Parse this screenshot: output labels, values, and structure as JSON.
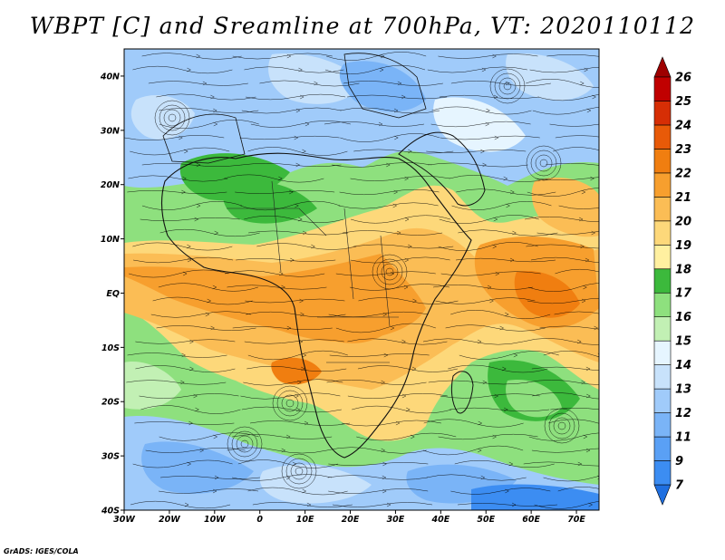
{
  "title": "WBPT [C] and Sreamline at 700hPa, VT: 2020110112",
  "credit": "GrADS: IGES/COLA",
  "map": {
    "lon_range": [
      -30,
      75
    ],
    "lat_range": [
      -40,
      45
    ],
    "lat_labels": [
      "40N",
      "30N",
      "20N",
      "10N",
      "EQ",
      "10S",
      "20S",
      "30S",
      "40S"
    ],
    "lat_values": [
      40,
      30,
      20,
      10,
      0,
      -10,
      -20,
      -30,
      -40
    ],
    "lon_labels": [
      "30W",
      "20W",
      "10W",
      "0",
      "10E",
      "20E",
      "30E",
      "40E",
      "50E",
      "60E",
      "70E"
    ],
    "lon_values": [
      -30,
      -20,
      -10,
      0,
      10,
      20,
      30,
      40,
      50,
      60,
      70
    ]
  },
  "colorbar": {
    "labels": [
      "7",
      "9",
      "11",
      "12",
      "13",
      "14",
      "15",
      "16",
      "17",
      "18",
      "19",
      "20",
      "21",
      "22",
      "23",
      "24",
      "25",
      "26"
    ],
    "colors": [
      "#1f6fe0",
      "#3c8df2",
      "#5aa0f5",
      "#7ab4f7",
      "#a0cbfa",
      "#c8e2fb",
      "#e6f5ff",
      "#c2f0b4",
      "#8ee07e",
      "#3cb93c",
      "#fff0a0",
      "#fdd87a",
      "#fbbd55",
      "#f79f2e",
      "#f07e10",
      "#e85a08",
      "#d62e05",
      "#c00000",
      "#9e0000"
    ]
  }
}
